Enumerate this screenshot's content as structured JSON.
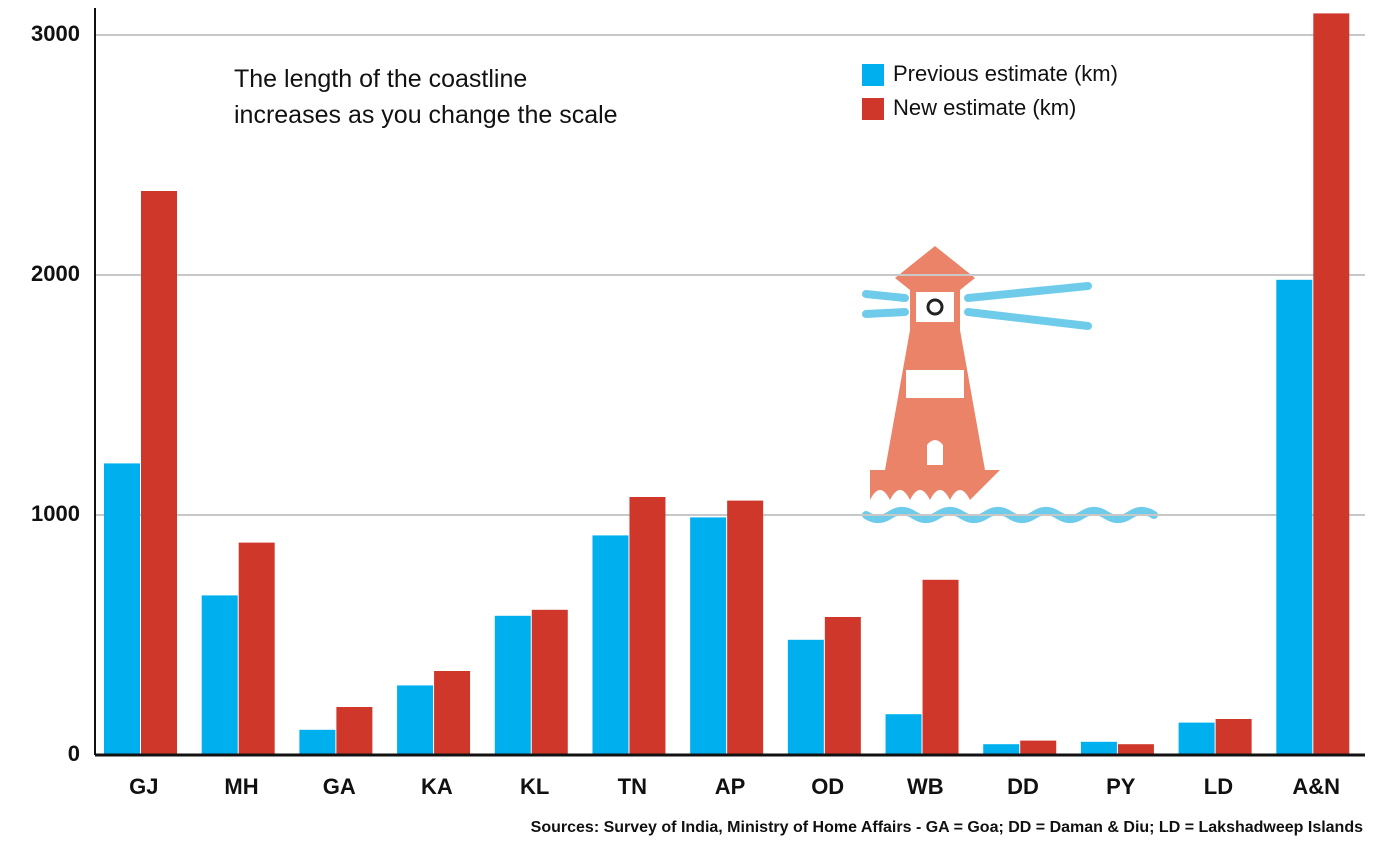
{
  "chart_data": {
    "type": "bar",
    "title": "The length of the coastline increases as you change the scale",
    "note": "Sources: Survey of India, Ministry of Home Affairs - GA = Goa; DD = Daman & Diu; LD = Lakshadweep Islands",
    "categories": [
      "GJ",
      "MH",
      "GA",
      "KA",
      "KL",
      "TN",
      "AP",
      "OD",
      "WB",
      "DD",
      "PY",
      "LD",
      "A&N"
    ],
    "series": [
      {
        "name": "Previous estimate (km)",
        "color": "#00b0ee",
        "values": [
          1215,
          665,
          105,
          290,
          580,
          915,
          990,
          480,
          170,
          45,
          55,
          135,
          1980
        ]
      },
      {
        "name": "New estimate (km)",
        "color": "#d0372b",
        "values": [
          2350,
          885,
          200,
          350,
          605,
          1075,
          1060,
          575,
          730,
          60,
          45,
          150,
          3090
        ]
      }
    ],
    "ylim": [
      0,
      3100
    ],
    "yticks": [
      0,
      1000,
      2000,
      3000
    ],
    "grid": true,
    "legend": "top-right"
  }
}
